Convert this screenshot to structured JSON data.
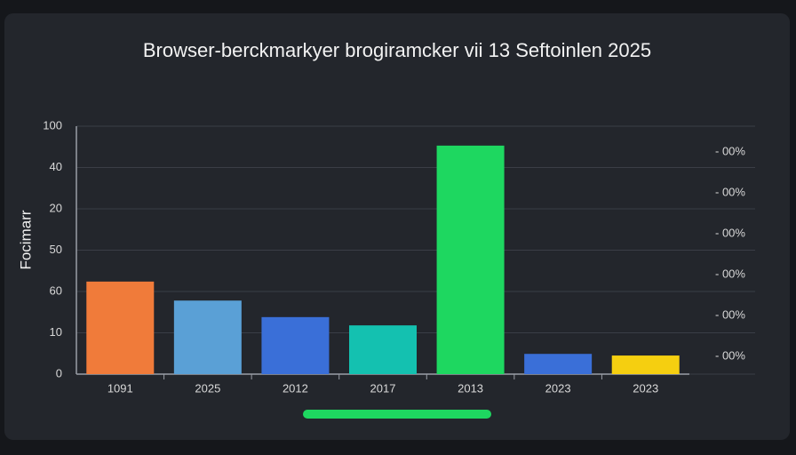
{
  "chart_data": {
    "type": "bar",
    "title": "Browser-berckmarkyer brogiramcker vii 13 Seftoinlen 2025",
    "y_label": "Focimarr",
    "categories": [
      "1091",
      "2025",
      "2012",
      "2017",
      "2013",
      "2023",
      "2023"
    ],
    "values": [
      2.24,
      1.78,
      1.38,
      1.18,
      5.53,
      0.49,
      0.45
    ],
    "colors": [
      "#f07b3a",
      "#5aa0d6",
      "#3a6fd8",
      "#14c1b0",
      "#1ed760",
      "#3a6fd8",
      "#f5cf10"
    ],
    "ylim": [
      0,
      6
    ],
    "yticks": [
      0,
      1,
      2,
      3,
      4,
      5,
      6
    ],
    "ytick_labels": [
      "0",
      "10",
      "60",
      "50",
      "20",
      "40",
      "100"
    ],
    "right_labels": [
      "- 00%",
      "- 00%",
      "- 00%",
      "- 00%",
      "- 00%",
      "- 00%"
    ],
    "grid": true
  }
}
